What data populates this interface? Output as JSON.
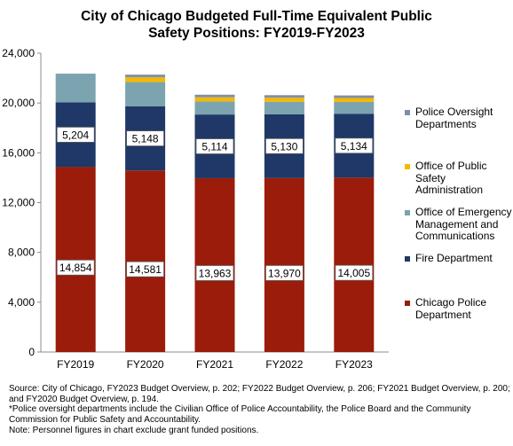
{
  "chart_data": {
    "type": "bar",
    "stacked": true,
    "title_lines": [
      "City of Chicago Budgeted Full-Time Equivalent Public",
      "Safety Positions: FY2019-FY2023"
    ],
    "categories": [
      "FY2019",
      "FY2020",
      "FY2021",
      "FY2022",
      "FY2023"
    ],
    "ylim": [
      0,
      24000
    ],
    "yticks": [
      0,
      4000,
      8000,
      12000,
      16000,
      20000,
      24000
    ],
    "ytick_labels": [
      "0",
      "4,000",
      "8,000",
      "12,000",
      "16,000",
      "20,000",
      "24,000"
    ],
    "grid": false,
    "legend_position": "right",
    "series": [
      {
        "name": "Chicago Police Department",
        "color": "#9b1c0a",
        "values": [
          14854,
          14581,
          13963,
          13970,
          14005
        ],
        "labels": [
          "14,854",
          "14,581",
          "13,963",
          "13,970",
          "14,005"
        ]
      },
      {
        "name": "Fire Department",
        "color": "#1f3868",
        "values": [
          5204,
          5148,
          5114,
          5130,
          5134
        ],
        "labels": [
          "5,204",
          "5,148",
          "5,114",
          "5,130",
          "5,134"
        ]
      },
      {
        "name": "Office of Emergency Management and Communications",
        "color": "#7ba3b0",
        "values": [
          2300,
          1950,
          1050,
          1000,
          950
        ],
        "labels": []
      },
      {
        "name": "Office of Public Safety Administration",
        "color": "#f4b800",
        "values": [
          0,
          380,
          330,
          320,
          310
        ],
        "labels": []
      },
      {
        "name": "Police Oversight Departments",
        "color": "#7f8fa6",
        "values": [
          0,
          220,
          210,
          210,
          210
        ],
        "labels": []
      }
    ]
  },
  "legend": {
    "items": [
      {
        "lines": [
          "Police Oversight",
          "Departments"
        ],
        "color": "#7f8fa6"
      },
      {
        "lines": [
          "Office of Public",
          "Safety",
          "Administration"
        ],
        "color": "#f4b800"
      },
      {
        "lines": [
          "Office of Emergency",
          "Management and",
          "Communications"
        ],
        "color": "#7ba3b0"
      },
      {
        "lines": [
          "Fire Department"
        ],
        "color": "#1f3868"
      },
      {
        "lines": [
          "Chicago Police",
          "Department"
        ],
        "color": "#9b1c0a"
      }
    ]
  },
  "notes": [
    "Source: City of Chicago, FY2023 Budget Overview, p. 202; FY2022 Budget Overview, p. 206; FY2021 Budget Overview, p. 200; and FY2020 Budget Overview, p. 194.",
    "*Police oversight departments include the Civilian  Office of Police Accountability, the Police Board and the Community Commission  for Public Safety and Accountability.",
    "Note: Personnel figures in chart exclude grant funded positions."
  ]
}
